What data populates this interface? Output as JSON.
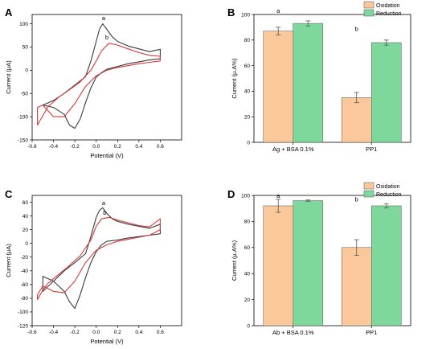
{
  "panels": [
    "A",
    "B",
    "C",
    "D"
  ],
  "chart_data": [
    {
      "type": "line",
      "panel": "A",
      "xlabel": "Potential (V)",
      "ylabel": "Current (µA)",
      "xlim": [
        -0.6,
        0.8
      ],
      "ylim": [
        -150,
        120
      ],
      "xticks": [
        "-0.6",
        "-0.4",
        "-0.2",
        "0.0",
        "0.2",
        "0.4",
        "0.6"
      ],
      "yticks": [
        "-150",
        "-100",
        "-50",
        "0",
        "50",
        "100"
      ],
      "series": [
        {
          "name": "a",
          "color": "#3a3a3a",
          "points": [
            [
              -0.5,
              -75
            ],
            [
              -0.4,
              -65
            ],
            [
              -0.3,
              -50
            ],
            [
              -0.2,
              -32
            ],
            [
              -0.1,
              -14
            ],
            [
              -0.05,
              20
            ],
            [
              0.0,
              62
            ],
            [
              0.03,
              88
            ],
            [
              0.06,
              100
            ],
            [
              0.1,
              88
            ],
            [
              0.15,
              72
            ],
            [
              0.2,
              62
            ],
            [
              0.3,
              52
            ],
            [
              0.4,
              46
            ],
            [
              0.5,
              40
            ],
            [
              0.6,
              45
            ],
            [
              0.6,
              25
            ],
            [
              0.5,
              22
            ],
            [
              0.4,
              18
            ],
            [
              0.3,
              14
            ],
            [
              0.2,
              8
            ],
            [
              0.1,
              2
            ],
            [
              0.05,
              -5
            ],
            [
              0.0,
              -15
            ],
            [
              -0.05,
              -38
            ],
            [
              -0.1,
              -70
            ],
            [
              -0.15,
              -105
            ],
            [
              -0.2,
              -125
            ],
            [
              -0.25,
              -118
            ],
            [
              -0.3,
              -95
            ],
            [
              -0.4,
              -80
            ],
            [
              -0.5,
              -75
            ]
          ]
        },
        {
          "name": "b",
          "color": "#d43a3a",
          "points": [
            [
              -0.55,
              -118
            ],
            [
              -0.5,
              -98
            ],
            [
              -0.45,
              -78
            ],
            [
              -0.35,
              -58
            ],
            [
              -0.25,
              -42
            ],
            [
              -0.15,
              -25
            ],
            [
              -0.05,
              0
            ],
            [
              0.0,
              20
            ],
            [
              0.05,
              42
            ],
            [
              0.12,
              58
            ],
            [
              0.2,
              54
            ],
            [
              0.3,
              46
            ],
            [
              0.4,
              38
            ],
            [
              0.5,
              32
            ],
            [
              0.6,
              30
            ],
            [
              0.6,
              20
            ],
            [
              0.5,
              17
            ],
            [
              0.4,
              14
            ],
            [
              0.3,
              10
            ],
            [
              0.2,
              6
            ],
            [
              0.1,
              0
            ],
            [
              0.0,
              -12
            ],
            [
              -0.1,
              -35
            ],
            [
              -0.2,
              -72
            ],
            [
              -0.3,
              -100
            ],
            [
              -0.4,
              -100
            ],
            [
              -0.5,
              -75
            ],
            [
              -0.55,
              -80
            ]
          ]
        }
      ],
      "annotations": [
        {
          "text": "a",
          "x": 0.07,
          "y": 108
        },
        {
          "text": "b",
          "x": 0.1,
          "y": 66
        }
      ]
    },
    {
      "type": "bar",
      "panel": "B",
      "xlabel": "",
      "ylabel": "Current (µ.A%)",
      "ylim": [
        0,
        100
      ],
      "yticks": [
        "0",
        "20",
        "40",
        "60",
        "80",
        "100"
      ],
      "categories": [
        "Ag + BSA 0.1%",
        "PP1"
      ],
      "series": [
        {
          "name": "Oxidation",
          "color": "#fac89b",
          "values": [
            87,
            35
          ],
          "errors": [
            3,
            4
          ]
        },
        {
          "name": "Reduction",
          "color": "#7fd89b",
          "values": [
            93,
            78
          ],
          "errors": [
            2,
            2
          ]
        }
      ],
      "legend": "top-right",
      "annotations": [
        {
          "text": "a",
          "category": 0,
          "y": 100
        },
        {
          "text": "b",
          "category": 1,
          "y": 86
        }
      ]
    },
    {
      "type": "line",
      "panel": "C",
      "xlabel": "Potential (V)",
      "ylabel": "Current (µA)",
      "xlim": [
        -0.6,
        0.8
      ],
      "ylim": [
        -120,
        70
      ],
      "xticks": [
        "-0.6",
        "-0.4",
        "-0.2",
        "0.0",
        "0.2",
        "0.4",
        "0.6"
      ],
      "yticks": [
        "-120",
        "-100",
        "-80",
        "-60",
        "-40",
        "-20",
        "0",
        "20",
        "40",
        "60"
      ],
      "series": [
        {
          "name": "a",
          "color": "#3a3a3a",
          "points": [
            [
              -0.5,
              -70
            ],
            [
              -0.4,
              -55
            ],
            [
              -0.3,
              -40
            ],
            [
              -0.2,
              -28
            ],
            [
              -0.1,
              -15
            ],
            [
              -0.05,
              10
            ],
            [
              0.0,
              38
            ],
            [
              0.03,
              48
            ],
            [
              0.06,
              52
            ],
            [
              0.1,
              44
            ],
            [
              0.15,
              36
            ],
            [
              0.2,
              32
            ],
            [
              0.3,
              28
            ],
            [
              0.4,
              25
            ],
            [
              0.5,
              22
            ],
            [
              0.6,
              28
            ],
            [
              0.6,
              14
            ],
            [
              0.5,
              12
            ],
            [
              0.4,
              10
            ],
            [
              0.3,
              8
            ],
            [
              0.2,
              5
            ],
            [
              0.1,
              3
            ],
            [
              0.05,
              -2
            ],
            [
              0.0,
              -12
            ],
            [
              -0.05,
              -28
            ],
            [
              -0.1,
              -50
            ],
            [
              -0.15,
              -75
            ],
            [
              -0.2,
              -95
            ],
            [
              -0.25,
              -85
            ],
            [
              -0.3,
              -70
            ],
            [
              -0.4,
              -55
            ],
            [
              -0.5,
              -48
            ]
          ]
        },
        {
          "name": "b",
          "color": "#d43a3a",
          "points": [
            [
              -0.55,
              -82
            ],
            [
              -0.5,
              -68
            ],
            [
              -0.45,
              -58
            ],
            [
              -0.35,
              -45
            ],
            [
              -0.25,
              -32
            ],
            [
              -0.15,
              -18
            ],
            [
              -0.05,
              5
            ],
            [
              0.0,
              25
            ],
            [
              0.05,
              36
            ],
            [
              0.12,
              38
            ],
            [
              0.2,
              34
            ],
            [
              0.3,
              30
            ],
            [
              0.4,
              26
            ],
            [
              0.5,
              24
            ],
            [
              0.6,
              36
            ],
            [
              0.6,
              20
            ],
            [
              0.5,
              12
            ],
            [
              0.4,
              9
            ],
            [
              0.3,
              6
            ],
            [
              0.2,
              3
            ],
            [
              0.1,
              -2
            ],
            [
              0.0,
              -10
            ],
            [
              -0.1,
              -28
            ],
            [
              -0.2,
              -55
            ],
            [
              -0.3,
              -72
            ],
            [
              -0.4,
              -70
            ],
            [
              -0.5,
              -62
            ],
            [
              -0.55,
              -75
            ]
          ]
        }
      ],
      "annotations": [
        {
          "text": "a",
          "x": 0.07,
          "y": 56
        },
        {
          "text": "b",
          "x": 0.08,
          "y": 42
        }
      ]
    },
    {
      "type": "bar",
      "panel": "D",
      "xlabel": "",
      "ylabel": "Current (µ.A%)",
      "ylim": [
        0,
        100
      ],
      "yticks": [
        "0",
        "20",
        "40",
        "60",
        "80",
        "100"
      ],
      "categories": [
        "Ab + BSA 0.1%",
        "PP1"
      ],
      "series": [
        {
          "name": "Oxidation",
          "color": "#fac89b",
          "values": [
            92,
            60
          ],
          "errors": [
            5,
            6
          ]
        },
        {
          "name": "Reduction",
          "color": "#7fd89b",
          "values": [
            96,
            92
          ],
          "errors": [
            0.5,
            1.5
          ]
        }
      ],
      "legend": "top-right",
      "annotations": [
        {
          "text": "a",
          "category": 0,
          "y": 97
        },
        {
          "text": "b",
          "category": 1,
          "y": 94
        }
      ]
    }
  ]
}
